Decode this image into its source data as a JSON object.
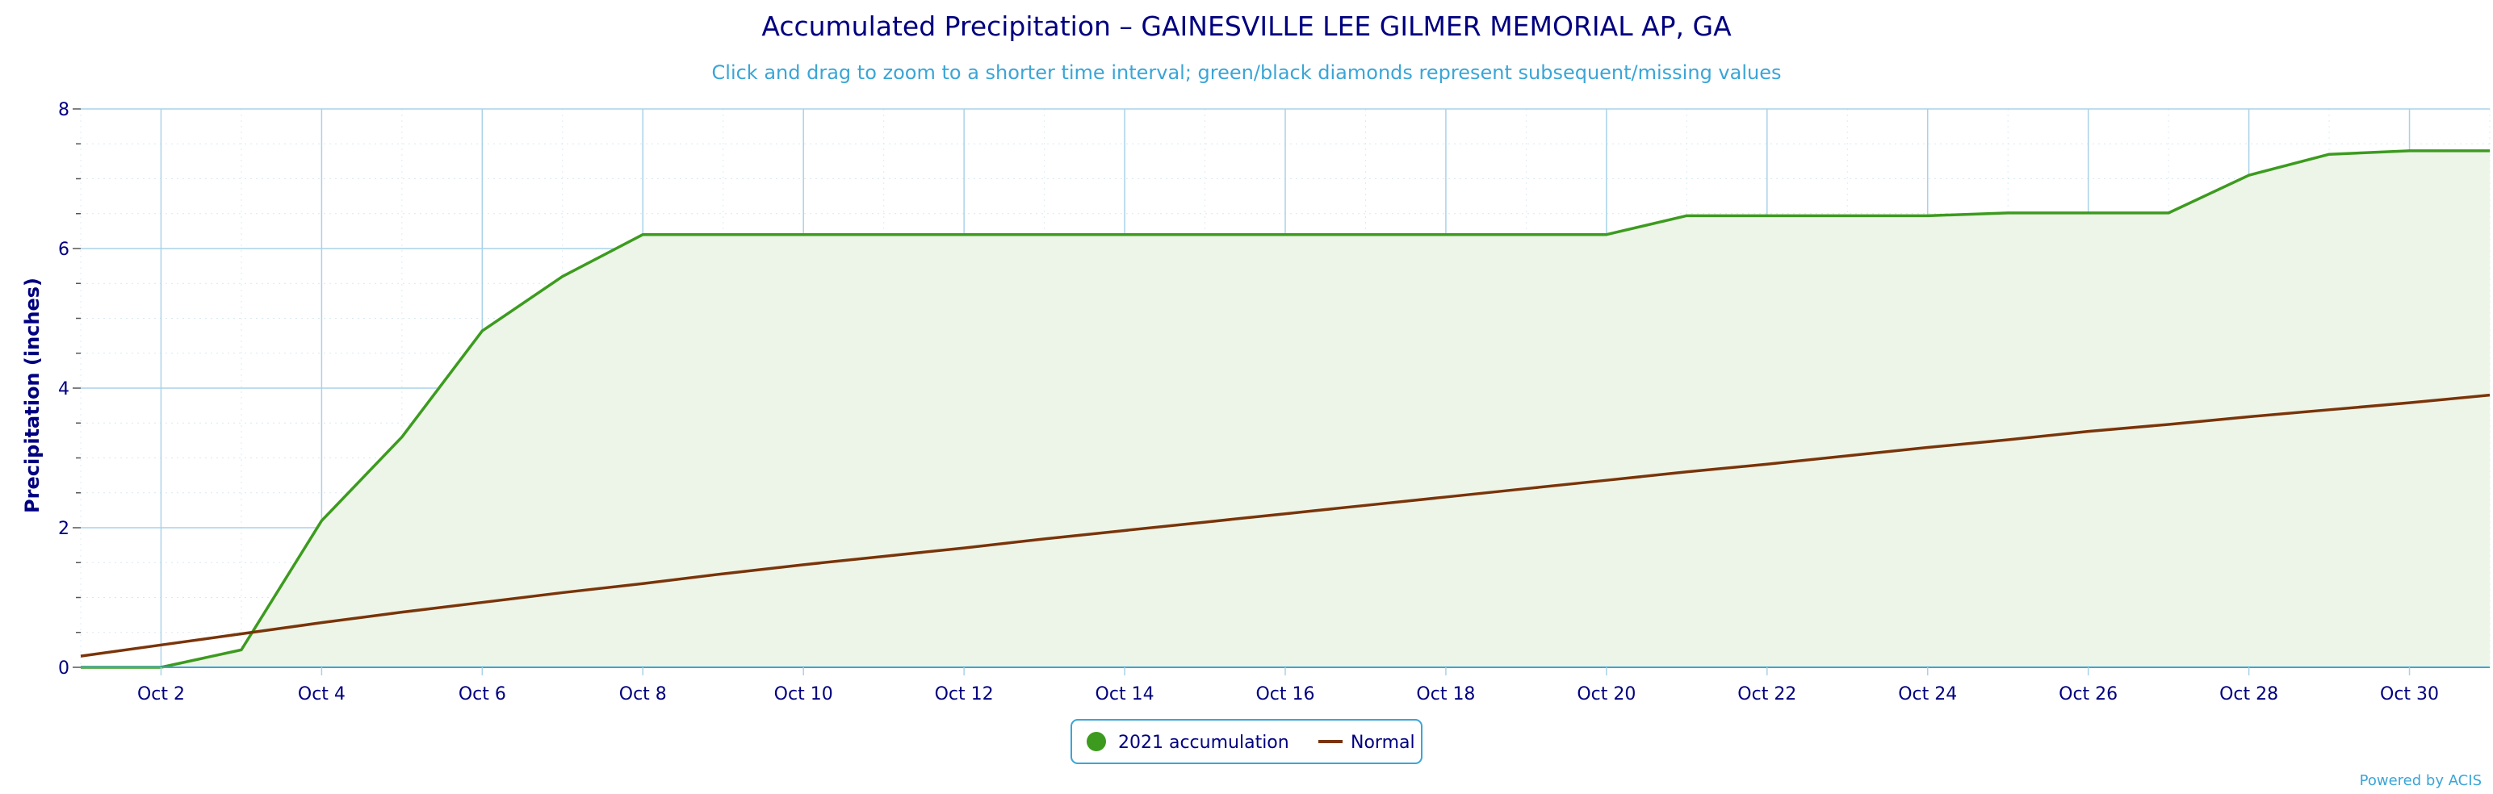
{
  "chart_data": {
    "type": "area",
    "title": "Accumulated Precipitation – GAINESVILLE LEE GILMER MEMORIAL AP, GA",
    "subtitle": "Click and drag to zoom to a shorter time interval; green/black diamonds represent subsequent/missing values",
    "ylabel": "Precipitation (inches)",
    "ylim": [
      0,
      8
    ],
    "yticks": [
      0,
      2,
      4,
      6,
      8
    ],
    "xlim": [
      1,
      31
    ],
    "xticks": [
      2,
      4,
      6,
      8,
      10,
      12,
      14,
      16,
      18,
      20,
      22,
      24,
      26,
      28,
      30
    ],
    "xtick_labels": [
      "Oct 2",
      "Oct 4",
      "Oct 6",
      "Oct 8",
      "Oct 10",
      "Oct 12",
      "Oct 14",
      "Oct 16",
      "Oct 18",
      "Oct 20",
      "Oct 22",
      "Oct 24",
      "Oct 26",
      "Oct 28",
      "Oct 30"
    ],
    "grid": true,
    "legend_placement": "bottom-center",
    "x": [
      1,
      2,
      3,
      4,
      5,
      6,
      7,
      8,
      9,
      10,
      11,
      12,
      13,
      14,
      15,
      16,
      17,
      18,
      19,
      20,
      21,
      22,
      23,
      24,
      25,
      26,
      27,
      28,
      29,
      30,
      31
    ],
    "series": [
      {
        "name": "2021 accumulation",
        "color": "#3c9b1e",
        "fill": "#edf5e8",
        "values": [
          0.0,
          0.0,
          0.25,
          2.1,
          3.3,
          4.82,
          5.6,
          6.2,
          6.2,
          6.2,
          6.2,
          6.2,
          6.2,
          6.2,
          6.2,
          6.2,
          6.2,
          6.2,
          6.2,
          6.2,
          6.47,
          6.47,
          6.47,
          6.47,
          6.51,
          6.51,
          6.51,
          7.05,
          7.35,
          7.4,
          7.4
        ]
      },
      {
        "name": "Normal",
        "color": "#7a3409",
        "values": [
          0.16,
          0.32,
          0.48,
          0.64,
          0.79,
          0.93,
          1.07,
          1.2,
          1.34,
          1.47,
          1.59,
          1.71,
          1.84,
          1.96,
          2.08,
          2.2,
          2.32,
          2.44,
          2.56,
          2.68,
          2.8,
          2.91,
          3.03,
          3.15,
          3.26,
          3.38,
          3.48,
          3.59,
          3.69,
          3.79,
          3.9
        ]
      }
    ]
  },
  "credit": "Powered by ACIS"
}
